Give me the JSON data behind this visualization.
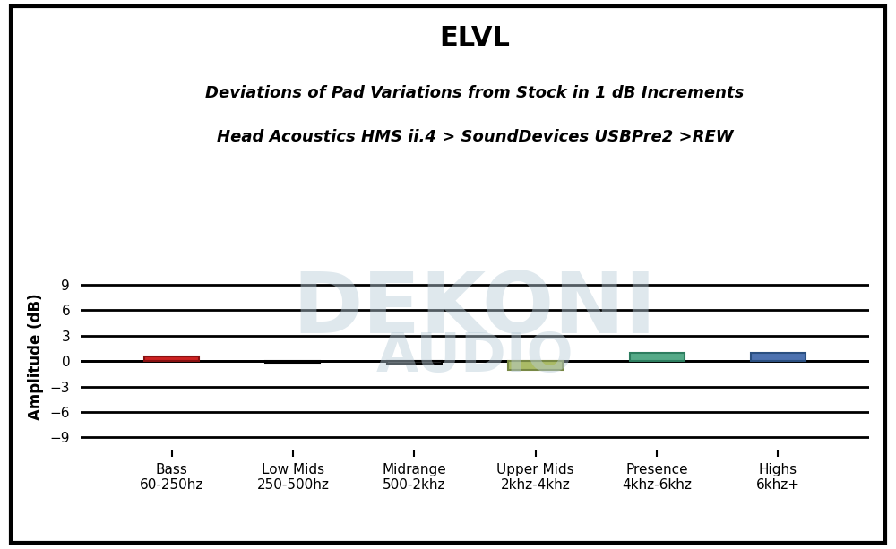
{
  "title": "ELVL",
  "subtitle_line1": "Deviations of Pad Variations from Stock in 1 dB Increments",
  "subtitle_line2": "Head Acoustics HMS ii.4 > SoundDevices USBPre2 >REW",
  "categories": [
    "Bass\n60-250hz",
    "Low Mids\n250-500hz",
    "Midrange\n500-2khz",
    "Upper Mids\n2khz-4khz",
    "Presence\n4khz-6khz",
    "Highs\n6khz+"
  ],
  "values": [
    0.5,
    -0.2,
    -0.3,
    -1.0,
    1.0,
    1.0
  ],
  "bar_colors": [
    "#cc2222",
    "#2a2a2a",
    "#2a2a2a",
    "#aabb66",
    "#55aa88",
    "#4d72b0"
  ],
  "bar_edge_colors": [
    "#881111",
    "#000000",
    "#000000",
    "#778844",
    "#2d7d5f",
    "#2a4f80"
  ],
  "ylabel": "Amplitude (dB)",
  "ylim": [
    -10.5,
    11.5
  ],
  "yticks": [
    -9,
    -6,
    -3,
    0,
    3,
    6,
    9
  ],
  "bar_width": 0.45,
  "figure_bg": "#ffffff",
  "axes_bg": "#ffffff",
  "border_color": "#000000",
  "grid_color": "#000000",
  "title_fontsize": 22,
  "subtitle_fontsize": 13,
  "ylabel_fontsize": 12,
  "tick_fontsize": 11,
  "watermark_text1": "DEKONI",
  "watermark_text2": "AUDIO"
}
